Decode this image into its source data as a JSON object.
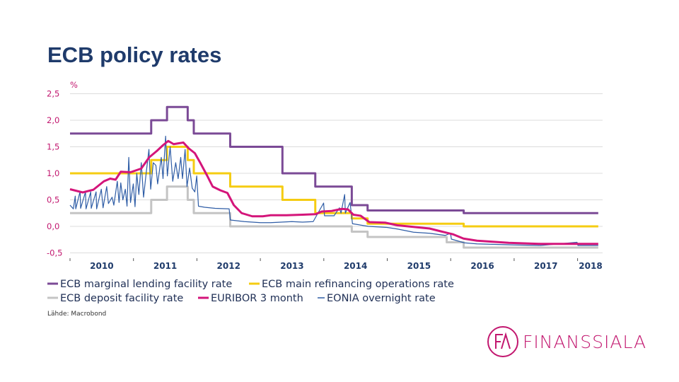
{
  "title": "ECB policy rates",
  "source": "Lähde: Macrobond",
  "logo": {
    "text": "FINANSSIALA",
    "mark": "FA",
    "color": "#c2176f"
  },
  "chart_data": {
    "type": "line",
    "ylabel": "%",
    "ylim": [
      -0.5,
      2.5
    ],
    "yticks": [
      2.5,
      2.0,
      1.5,
      1.0,
      0.5,
      0.0,
      -0.5
    ],
    "ytick_labels": [
      "2,5",
      "2,0",
      "1,5",
      "1,0",
      "0,5",
      "0,0",
      "-0,5"
    ],
    "xlim": [
      "2010-01-01",
      "2018-04-30"
    ],
    "xtick_labels": [
      "2010",
      "2011",
      "2012",
      "2013",
      "2014",
      "2015",
      "2016",
      "2017",
      "2018"
    ],
    "grid": true,
    "legend_position": "bottom",
    "series": [
      {
        "name": "ECB marginal lending facility rate",
        "color": "#7b4a96",
        "step": true,
        "points": [
          [
            "2010-01-01",
            1.75
          ],
          [
            "2011-04-13",
            2.0
          ],
          [
            "2011-07-13",
            2.25
          ],
          [
            "2011-11-09",
            2.0
          ],
          [
            "2011-12-14",
            1.75
          ],
          [
            "2012-07-11",
            1.5
          ],
          [
            "2013-05-08",
            1.0
          ],
          [
            "2013-11-13",
            0.75
          ],
          [
            "2014-06-11",
            0.4
          ],
          [
            "2014-09-10",
            0.3
          ],
          [
            "2016-03-16",
            0.25
          ],
          [
            "2018-04-30",
            0.25
          ]
        ]
      },
      {
        "name": "ECB main refinancing operations rate",
        "color": "#f5cc12",
        "step": true,
        "points": [
          [
            "2010-01-01",
            1.0
          ],
          [
            "2011-04-13",
            1.25
          ],
          [
            "2011-07-13",
            1.5
          ],
          [
            "2011-11-09",
            1.25
          ],
          [
            "2011-12-14",
            1.0
          ],
          [
            "2012-07-11",
            0.75
          ],
          [
            "2013-05-08",
            0.5
          ],
          [
            "2013-11-13",
            0.25
          ],
          [
            "2014-06-11",
            0.15
          ],
          [
            "2014-09-10",
            0.05
          ],
          [
            "2016-03-16",
            0.0
          ],
          [
            "2018-04-30",
            0.0
          ]
        ]
      },
      {
        "name": "ECB deposit facility rate",
        "color": "#c4c4c4",
        "step": true,
        "points": [
          [
            "2010-01-01",
            0.25
          ],
          [
            "2011-04-13",
            0.5
          ],
          [
            "2011-07-13",
            0.75
          ],
          [
            "2011-11-09",
            0.5
          ],
          [
            "2011-12-14",
            0.25
          ],
          [
            "2012-07-11",
            0.0
          ],
          [
            "2014-06-11",
            -0.1
          ],
          [
            "2014-09-10",
            -0.2
          ],
          [
            "2015-12-09",
            -0.3
          ],
          [
            "2016-03-16",
            -0.4
          ],
          [
            "2018-04-30",
            -0.4
          ]
        ]
      },
      {
        "name": "EURIBOR 3 month",
        "color": "#d4157a",
        "step": false,
        "points": [
          [
            "2010-01-01",
            0.7
          ],
          [
            "2010-03-15",
            0.64
          ],
          [
            "2010-05-15",
            0.69
          ],
          [
            "2010-07-15",
            0.85
          ],
          [
            "2010-08-20",
            0.9
          ],
          [
            "2010-09-20",
            0.88
          ],
          [
            "2010-10-20",
            1.03
          ],
          [
            "2010-12-15",
            1.02
          ],
          [
            "2011-02-15",
            1.09
          ],
          [
            "2011-04-01",
            1.3
          ],
          [
            "2011-05-15",
            1.42
          ],
          [
            "2011-06-20",
            1.53
          ],
          [
            "2011-07-20",
            1.61
          ],
          [
            "2011-08-20",
            1.55
          ],
          [
            "2011-10-15",
            1.58
          ],
          [
            "2011-11-15",
            1.47
          ],
          [
            "2011-12-20",
            1.38
          ],
          [
            "2012-01-20",
            1.2
          ],
          [
            "2012-03-01",
            0.95
          ],
          [
            "2012-04-01",
            0.75
          ],
          [
            "2012-05-15",
            0.68
          ],
          [
            "2012-06-25",
            0.63
          ],
          [
            "2012-08-01",
            0.4
          ],
          [
            "2012-09-15",
            0.25
          ],
          [
            "2012-11-15",
            0.19
          ],
          [
            "2013-01-15",
            0.19
          ],
          [
            "2013-03-01",
            0.21
          ],
          [
            "2013-06-01",
            0.21
          ],
          [
            "2013-09-01",
            0.22
          ],
          [
            "2013-11-15",
            0.23
          ],
          [
            "2013-12-20",
            0.28
          ],
          [
            "2014-02-15",
            0.29
          ],
          [
            "2014-04-15",
            0.33
          ],
          [
            "2014-05-20",
            0.32
          ],
          [
            "2014-06-20",
            0.22
          ],
          [
            "2014-08-01",
            0.2
          ],
          [
            "2014-09-20",
            0.08
          ],
          [
            "2014-12-20",
            0.07
          ],
          [
            "2015-03-01",
            0.02
          ],
          [
            "2015-06-01",
            -0.01
          ],
          [
            "2015-09-01",
            -0.04
          ],
          [
            "2015-11-01",
            -0.09
          ],
          [
            "2016-01-15",
            -0.15
          ],
          [
            "2016-03-15",
            -0.23
          ],
          [
            "2016-06-01",
            -0.27
          ],
          [
            "2016-12-01",
            -0.31
          ],
          [
            "2017-06-01",
            -0.33
          ],
          [
            "2018-04-30",
            -0.33
          ]
        ]
      },
      {
        "name": "EONIA overnight rate",
        "color": "#2f5da6",
        "step": false,
        "thin": true,
        "points": [
          [
            "2010-01-01",
            0.4
          ],
          [
            "2010-01-20",
            0.33
          ],
          [
            "2010-01-31",
            0.57
          ],
          [
            "2010-02-03",
            0.33
          ],
          [
            "2010-02-28",
            0.66
          ],
          [
            "2010-03-03",
            0.34
          ],
          [
            "2010-03-31",
            0.65
          ],
          [
            "2010-04-03",
            0.33
          ],
          [
            "2010-04-30",
            0.65
          ],
          [
            "2010-05-03",
            0.34
          ],
          [
            "2010-05-31",
            0.65
          ],
          [
            "2010-06-03",
            0.33
          ],
          [
            "2010-06-30",
            0.7
          ],
          [
            "2010-07-10",
            0.35
          ],
          [
            "2010-07-31",
            0.75
          ],
          [
            "2010-08-10",
            0.43
          ],
          [
            "2010-08-31",
            0.55
          ],
          [
            "2010-09-10",
            0.4
          ],
          [
            "2010-09-30",
            0.85
          ],
          [
            "2010-10-10",
            0.45
          ],
          [
            "2010-10-20",
            0.82
          ],
          [
            "2010-11-01",
            0.5
          ],
          [
            "2010-11-15",
            0.7
          ],
          [
            "2010-11-25",
            0.38
          ],
          [
            "2010-12-05",
            1.3
          ],
          [
            "2010-12-15",
            0.45
          ],
          [
            "2010-12-31",
            0.8
          ],
          [
            "2011-01-10",
            0.37
          ],
          [
            "2011-01-20",
            1.0
          ],
          [
            "2011-02-01",
            0.6
          ],
          [
            "2011-02-15",
            1.2
          ],
          [
            "2011-02-28",
            0.55
          ],
          [
            "2011-03-15",
            1.0
          ],
          [
            "2011-03-31",
            1.45
          ],
          [
            "2011-04-10",
            0.7
          ],
          [
            "2011-04-25",
            1.2
          ],
          [
            "2011-05-10",
            1.15
          ],
          [
            "2011-05-20",
            0.8
          ],
          [
            "2011-06-10",
            1.3
          ],
          [
            "2011-06-20",
            0.9
          ],
          [
            "2011-07-05",
            1.7
          ],
          [
            "2011-07-15",
            0.95
          ],
          [
            "2011-07-31",
            1.5
          ],
          [
            "2011-08-15",
            0.85
          ],
          [
            "2011-09-01",
            1.2
          ],
          [
            "2011-09-15",
            0.9
          ],
          [
            "2011-09-30",
            1.3
          ],
          [
            "2011-10-10",
            0.9
          ],
          [
            "2011-10-25",
            1.45
          ],
          [
            "2011-11-05",
            0.75
          ],
          [
            "2011-11-20",
            1.1
          ],
          [
            "2011-12-05",
            0.72
          ],
          [
            "2011-12-20",
            0.65
          ],
          [
            "2011-12-31",
            0.95
          ],
          [
            "2012-01-10",
            0.38
          ],
          [
            "2012-02-15",
            0.36
          ],
          [
            "2012-04-15",
            0.34
          ],
          [
            "2012-07-05",
            0.33
          ],
          [
            "2012-07-12",
            0.12
          ],
          [
            "2012-10-01",
            0.09
          ],
          [
            "2013-01-01",
            0.07
          ],
          [
            "2013-03-01",
            0.07
          ],
          [
            "2013-05-01",
            0.08
          ],
          [
            "2013-07-01",
            0.09
          ],
          [
            "2013-09-01",
            0.08
          ],
          [
            "2013-11-01",
            0.09
          ],
          [
            "2013-12-31",
            0.44
          ],
          [
            "2014-01-05",
            0.2
          ],
          [
            "2014-03-01",
            0.2
          ],
          [
            "2014-04-01",
            0.35
          ],
          [
            "2014-04-10",
            0.25
          ],
          [
            "2014-05-01",
            0.6
          ],
          [
            "2014-05-05",
            0.25
          ],
          [
            "2014-06-01",
            0.45
          ],
          [
            "2014-06-15",
            0.05
          ],
          [
            "2014-09-15",
            0.0
          ],
          [
            "2014-12-31",
            -0.02
          ],
          [
            "2015-03-01",
            -0.05
          ],
          [
            "2015-06-01",
            -0.11
          ],
          [
            "2015-09-01",
            -0.13
          ],
          [
            "2015-12-01",
            -0.17
          ],
          [
            "2015-12-31",
            -0.13
          ],
          [
            "2016-01-05",
            -0.24
          ],
          [
            "2016-03-20",
            -0.31
          ],
          [
            "2016-06-01",
            -0.33
          ],
          [
            "2017-01-01",
            -0.35
          ],
          [
            "2017-06-01",
            -0.36
          ],
          [
            "2017-12-29",
            -0.3
          ],
          [
            "2018-01-03",
            -0.36
          ],
          [
            "2018-04-30",
            -0.36
          ]
        ]
      }
    ]
  }
}
